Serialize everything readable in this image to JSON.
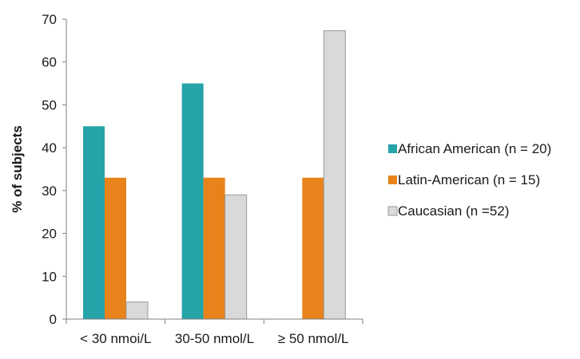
{
  "chart_data": {
    "type": "bar",
    "title": "",
    "xlabel": "",
    "ylabel": "% of subjects",
    "ylim": [
      0,
      70
    ],
    "yticks": [
      0,
      10,
      20,
      30,
      40,
      50,
      60,
      70
    ],
    "grid": false,
    "legend_position": "right",
    "categories": [
      "< 30 nmoi/L",
      "30-50 nmol/L",
      "≥ 50 nmol/L"
    ],
    "series": [
      {
        "name": "African American (n = 20)",
        "color": "#24A3A8",
        "values": [
          45,
          55,
          0
        ]
      },
      {
        "name": "Latin-American (n = 15)",
        "color": "#E8821A",
        "values": [
          33,
          33,
          33
        ]
      },
      {
        "name": "Caucasian (n =52)",
        "color": "#D9D9D9",
        "values": [
          4,
          29,
          67.3
        ]
      }
    ]
  }
}
